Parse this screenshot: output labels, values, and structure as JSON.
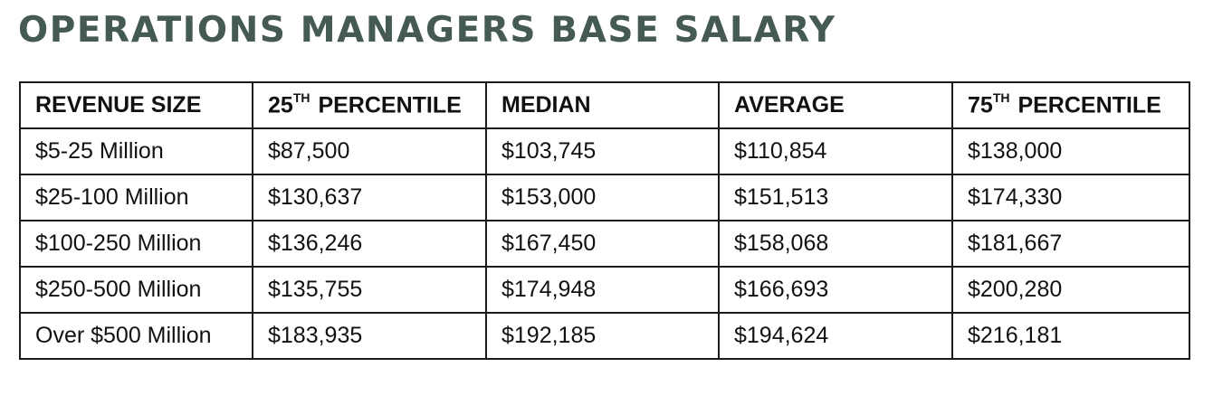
{
  "title": "OPERATIONS MANAGERS BASE SALARY",
  "table": {
    "headers": [
      {
        "label": "REVENUE SIZE",
        "sup": "",
        "suffix": ""
      },
      {
        "label": "25",
        "sup": "TH",
        "suffix": "PERCENTILE"
      },
      {
        "label": "MEDIAN",
        "sup": "",
        "suffix": ""
      },
      {
        "label": "AVERAGE",
        "sup": "",
        "suffix": ""
      },
      {
        "label": "75",
        "sup": "TH",
        "suffix": "PERCENTILE"
      }
    ],
    "rows": [
      [
        "$5-25 Million",
        "$87,500",
        "$103,745",
        "$110,854",
        "$138,000"
      ],
      [
        "$25-100 Million",
        "$130,637",
        "$153,000",
        "$151,513",
        "$174,330"
      ],
      [
        "$100-250 Million",
        "$136,246",
        "$167,450",
        "$158,068",
        "$181,667"
      ],
      [
        "$250-500 Million",
        "$135,755",
        "$174,948",
        "$166,693",
        "$200,280"
      ],
      [
        "Over $500 Million",
        "$183,935",
        "$192,185",
        "$194,624",
        "$216,181"
      ]
    ]
  },
  "colors": {
    "title": "#445a52",
    "border": "#1a1a1a",
    "text": "#111111"
  }
}
